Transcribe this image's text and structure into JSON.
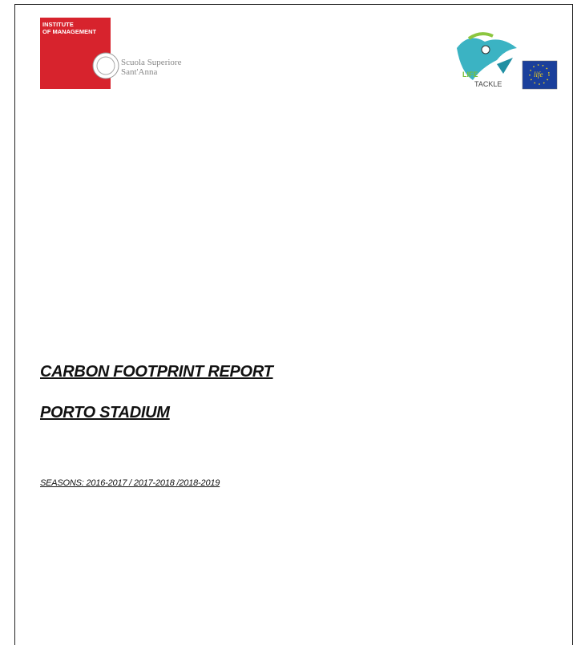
{
  "header": {
    "institute_logo": {
      "line1": "INSTITUTE",
      "line2": "OF MANAGEMENT",
      "school_line1": "Scuola Superiore",
      "school_line2": "Sant'Anna"
    },
    "project_logo": {
      "line1": "LIFE",
      "line2": "TACKLE",
      "eu_text": "life"
    }
  },
  "document": {
    "title": "CARBON FOOTPRINT REPORT",
    "subtitle": "PORTO STADIUM",
    "seasons": "SEASONS: 2016-2017 / 2017-2018 /2018-2019"
  }
}
